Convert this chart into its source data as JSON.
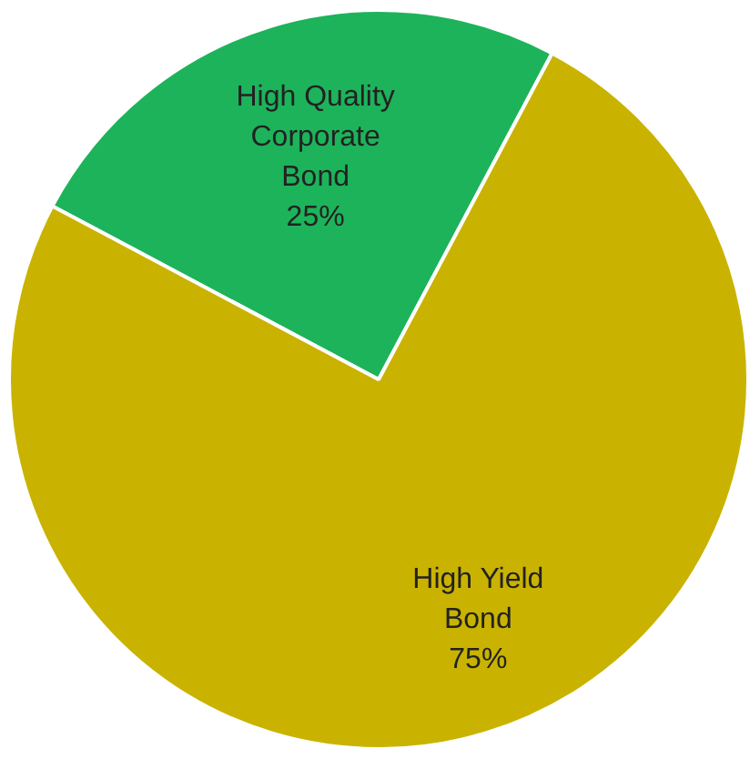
{
  "chart_data": {
    "type": "pie",
    "categories": [
      "High Quality Corporate Bond",
      "High Yield Bond"
    ],
    "values": [
      25,
      75
    ],
    "colors": [
      "#1db35b",
      "#c9b300"
    ],
    "value_labels": [
      "25%",
      "75%"
    ]
  }
}
